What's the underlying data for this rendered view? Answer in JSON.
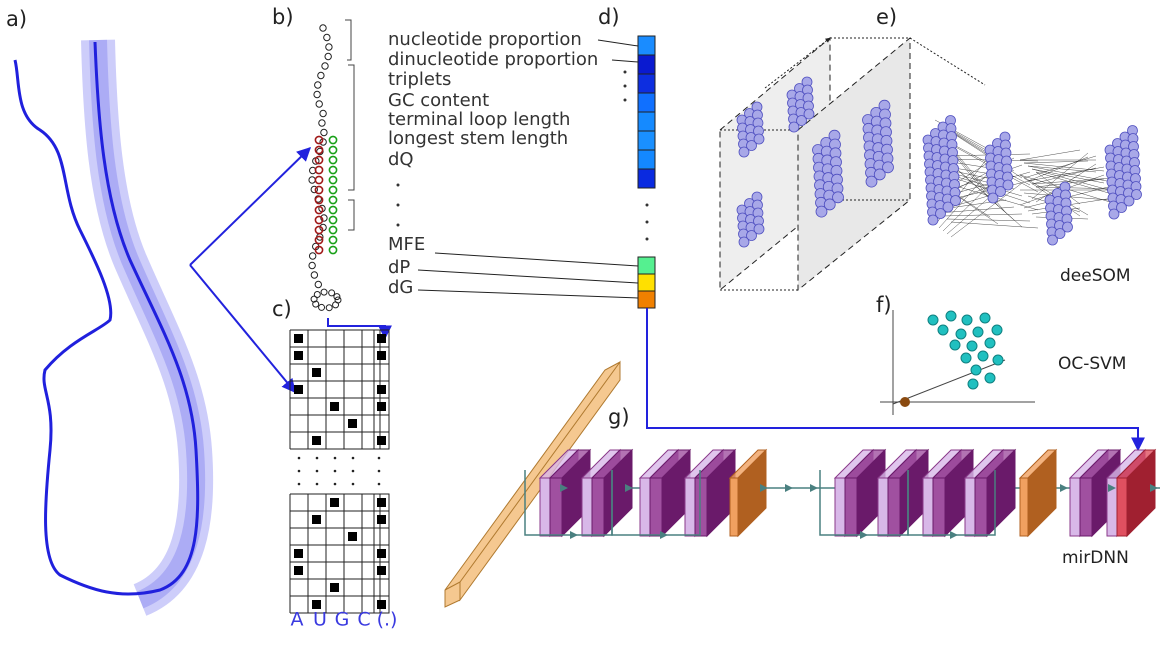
{
  "panels": [
    "a)",
    "b)",
    "c)",
    "d)",
    "e)",
    "f)",
    "g)"
  ],
  "features": [
    "nucleotide proportion",
    "dinucleotide proportion",
    "triplets",
    "GC content",
    "terminal loop length",
    "longest stem length",
    "dQ"
  ],
  "energy_features": [
    "MFE",
    "dP",
    "dG"
  ],
  "models": {
    "desom": "deeSOM",
    "ocsvm": "OC-SVM",
    "mirdnn": "mirDNN"
  },
  "one_hot_labels": [
    "A",
    "U",
    "G",
    "C",
    "(.)"
  ]
}
